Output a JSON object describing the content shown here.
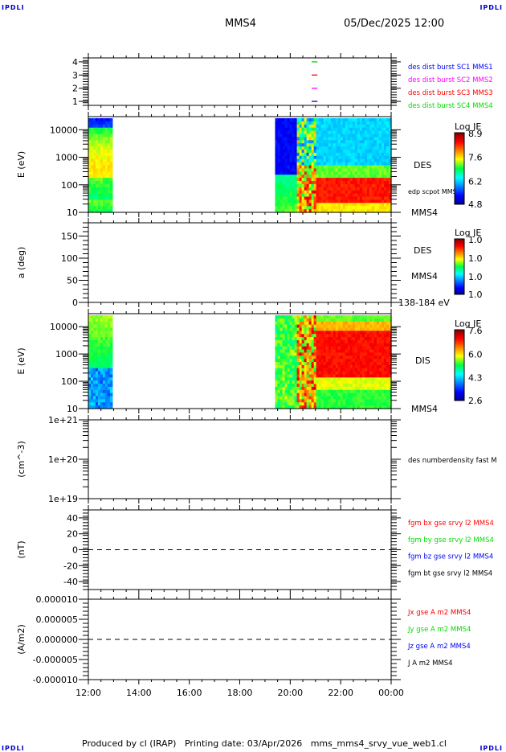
{
  "header": {
    "corner_label": "IPDLI",
    "spacecraft": "MMS4",
    "datetime": "05/Dec/2025 12:00"
  },
  "footer": {
    "text": "Produced by cl (IRAP)   Printing date: 03/Apr/2026   mms_mms4_srvy_vue_web1.cl"
  },
  "chart_data": [
    {
      "type": "line",
      "panel": "burst-indicators",
      "ylabel": "",
      "yticks": [
        "1",
        "2",
        "3",
        "4"
      ],
      "ylim": [
        0.7,
        4.3
      ],
      "legend": [
        {
          "label": "des dist burst SC1 MMS1",
          "color": "#0000ff",
          "y": 4
        },
        {
          "label": "des dist burst SC2 MMS2",
          "color": "#ff00ff",
          "y": 3
        },
        {
          "label": "des dist burst SC3 MMS3",
          "color": "#ff0000",
          "y": 2
        },
        {
          "label": "des dist burst SC4 MMS4",
          "color": "#00dd00",
          "y": 1
        }
      ],
      "segments": [
        {
          "y": 4,
          "color": "#00dd00",
          "x": [
            20.85,
            21.08
          ]
        },
        {
          "y": 3,
          "color": "#ff0000",
          "x": [
            20.85,
            21.08
          ]
        },
        {
          "y": 2,
          "color": "#ff00ff",
          "x": [
            20.85,
            21.08
          ]
        },
        {
          "y": 1,
          "color": "#0000cc",
          "x": [
            20.85,
            21.08
          ]
        }
      ]
    },
    {
      "type": "heatmap",
      "panel": "des-energy-spectrogram",
      "ylabel": "E (eV)",
      "yscale": "log",
      "ylim": [
        10,
        30000
      ],
      "yticks": [
        "10",
        "100",
        "1000",
        "10000"
      ],
      "side_labels": [
        "DES",
        "edp scpot MMS4",
        "MMS4"
      ],
      "colorbar": {
        "title": "Log JE",
        "ticks": [
          "8.9",
          "7.6",
          "6.2",
          "4.8"
        ],
        "range": [
          4.8,
          8.9
        ]
      },
      "data_intervals": [
        [
          12.0,
          12.95
        ],
        [
          19.4,
          24.0
        ]
      ]
    },
    {
      "type": "heatmap",
      "panel": "des-pitch-angle",
      "ylabel": "a (deg)",
      "ylim": [
        0,
        180
      ],
      "yticks": [
        "0",
        "50",
        "100",
        "150"
      ],
      "side_labels": [
        "DES",
        "MMS4",
        "138-184 eV"
      ],
      "colorbar": {
        "title": "Log JE",
        "ticks": [
          "1.0",
          "1.0",
          "1.0",
          "1.0"
        ],
        "range": [
          1.0,
          1.0
        ]
      },
      "data_intervals": []
    },
    {
      "type": "heatmap",
      "panel": "dis-energy-spectrogram",
      "ylabel": "E (eV)",
      "yscale": "log",
      "ylim": [
        10,
        30000
      ],
      "yticks": [
        "10",
        "100",
        "1000",
        "10000"
      ],
      "side_labels": [
        "DIS",
        "MMS4"
      ],
      "colorbar": {
        "title": "Log JE",
        "ticks": [
          "7.6",
          "6.0",
          "4.3",
          "2.6"
        ],
        "range": [
          2.6,
          7.6
        ]
      },
      "data_intervals": [
        [
          12.0,
          12.95
        ],
        [
          19.4,
          24.0
        ]
      ]
    },
    {
      "type": "line",
      "panel": "density",
      "ylabel": "(cm^-3)",
      "yscale": "log",
      "ylim": [
        1e+19,
        1e+21
      ],
      "yticks": [
        "1e+19",
        "1e+20",
        "1e+21"
      ],
      "legend": [
        {
          "label": "des numberdensity fast M",
          "color": "#000000"
        }
      ],
      "series": []
    },
    {
      "type": "line",
      "panel": "magnetic-field",
      "ylabel": "(nT)",
      "ylim": [
        -50,
        50
      ],
      "yticks": [
        "-40",
        "-20",
        "0",
        "20",
        "40"
      ],
      "zero_line": true,
      "legend": [
        {
          "label": "fgm bx gse srvy l2 MMS4",
          "color": "#ff0000"
        },
        {
          "label": "fgm by gse srvy l2 MMS4",
          "color": "#00dd00"
        },
        {
          "label": "fgm bz gse srvy l2 MMS4",
          "color": "#0000ff"
        },
        {
          "label": "fgm bt gse srvy l2 MMS4",
          "color": "#000000"
        }
      ],
      "series": []
    },
    {
      "type": "line",
      "panel": "current-density",
      "ylabel": "(A/m2)",
      "ylim": [
        -1e-05,
        1e-05
      ],
      "yticks": [
        "-0.000010",
        "-0.000005",
        "0.000000",
        "0.000005",
        "0.000010"
      ],
      "zero_line": true,
      "legend": [
        {
          "label": "Jx gse A m2 MMS4",
          "color": "#ff0000"
        },
        {
          "label": "Jy gse A m2 MMS4",
          "color": "#00dd00"
        },
        {
          "label": "Jz gse A m2 MMS4",
          "color": "#0000ff"
        },
        {
          "label": "J A m2 MMS4",
          "color": "#000000"
        }
      ],
      "series": []
    }
  ],
  "xaxis": {
    "range_hours": [
      12,
      24
    ],
    "tick_labels": [
      "12:00",
      "14:00",
      "16:00",
      "18:00",
      "20:00",
      "22:00",
      "00:00"
    ]
  }
}
